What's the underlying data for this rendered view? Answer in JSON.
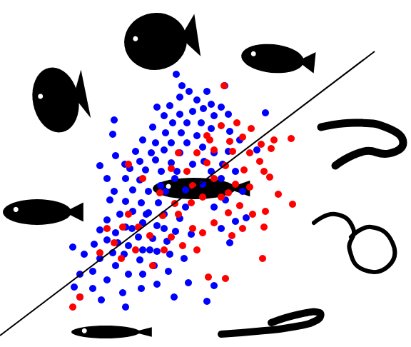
{
  "chart_data": {
    "type": "scatter",
    "xlim": [
      0,
      576
    ],
    "ylim": [
      0,
      486
    ],
    "tick_labels": false,
    "grid": false,
    "series": [
      {
        "type": "scatter",
        "color": "#0000ff",
        "marker": "circle",
        "x": [
          247,
          315,
          290,
          265,
          252,
          276,
          296,
          238,
          220,
          310,
          285,
          270,
          252,
          230,
          300,
          320,
          372,
          242,
          262,
          282,
          214,
          296,
          232,
          254,
          158,
          276,
          200,
          218,
          240,
          262,
          284,
          230,
          190,
          212,
          252,
          320,
          196,
          218,
          240,
          162,
          140,
          182,
          204,
          226,
          248,
          296,
          310,
          176,
          196,
          160,
          186,
          208,
          232,
          154,
          176,
          198,
          222,
          260,
          284,
          340,
          300,
          316,
          186,
          208,
          230,
          168,
          150,
          252,
          200,
          220,
          176,
          140,
          162,
          246,
          268,
          194,
          214,
          234,
          310,
          322,
          150,
          132,
          180,
          200,
          220,
          158,
          174,
          238,
          118,
          102,
          140,
          196,
          216,
          258,
          162,
          130,
          180,
          200,
          236,
          112,
          150,
          220,
          130,
          198,
          264,
          104,
          172,
          300,
          142,
          176,
          112,
          290,
          244,
          210,
          230,
          260,
          245,
          225,
          205,
          185,
          165,
          300,
          312,
          330,
          336,
          322,
          286,
          270,
          150,
          175,
          360,
          160,
          255,
          330,
          345
        ],
        "y": [
          382,
          366,
          358,
          358,
          350,
          346,
          340,
          338,
          336,
          336,
          334,
          330,
          326,
          324,
          324,
          326,
          328,
          314,
          314,
          314,
          308,
          306,
          300,
          300,
          298,
          296,
          290,
          286,
          286,
          286,
          280,
          276,
          274,
          272,
          272,
          274,
          260,
          262,
          258,
          268,
          254,
          250,
          248,
          246,
          246,
          246,
          236,
          236,
          234,
          218,
          220,
          218,
          218,
          206,
          204,
          202,
          202,
          220,
          228,
          218,
          196,
          206,
          190,
          188,
          186,
          186,
          178,
          180,
          174,
          170,
          168,
          164,
          160,
          162,
          158,
          154,
          152,
          148,
          166,
          146,
          150,
          144,
          142,
          136,
          134,
          132,
          130,
          130,
          130,
          140,
          124,
          122,
          114,
          124,
          114,
          106,
          102,
          102,
          106,
          102,
          94,
          88,
          82,
          82,
          90,
          84,
          76,
          86,
          66,
          56,
          70,
          64,
          70,
          136,
          166,
          196,
          236,
          226,
          186,
          166,
          146,
          272,
          256,
          246,
          290,
          302,
          260,
          256,
          236,
          256,
          276,
          318,
          366,
          176,
          181
        ]
      },
      {
        "type": "scatter",
        "color": "#ff0000",
        "marker": "circle",
        "x": [
          314,
          332,
          310,
          294,
          322,
          340,
          366,
          384,
          408,
          380,
          300,
          326,
          350,
          364,
          276,
          250,
          290,
          316,
          342,
          370,
          240,
          262,
          300,
          330,
          350,
          390,
          410,
          284,
          310,
          268,
          336,
          372,
          354,
          320,
          228,
          250,
          300,
          340,
          370,
          180,
          172,
          160,
          194,
          240,
          270,
          284,
          230,
          256,
          140,
          276,
          170,
          214,
          368,
          292,
          316,
          102,
          112,
          270,
          290,
          352,
          378,
          320,
          245,
          210,
          325,
          180,
          200,
          224,
          150,
          190
        ],
        "y": [
          366,
          314,
          310,
          290,
          288,
          294,
          284,
          290,
          292,
          278,
          276,
          274,
          272,
          260,
          272,
          272,
          258,
          254,
          248,
          246,
          250,
          246,
          236,
          228,
          224,
          214,
          200,
          210,
          210,
          202,
          198,
          190,
          186,
          188,
          184,
          186,
          174,
          166,
          168,
          186,
          168,
          146,
          168,
          154,
          166,
          160,
          136,
          142,
          132,
          136,
          124,
          114,
          124,
          98,
          96,
          56,
          70,
          226,
          296,
          306,
          238,
          216,
          201,
          156,
          156,
          256,
          236,
          216,
          166,
          136
        ]
      },
      {
        "type": "line",
        "color": "#000000",
        "line_style": "solid",
        "marker": "none",
        "x": [
          0,
          525
        ],
        "y": [
          16,
          414
        ]
      }
    ]
  }
}
